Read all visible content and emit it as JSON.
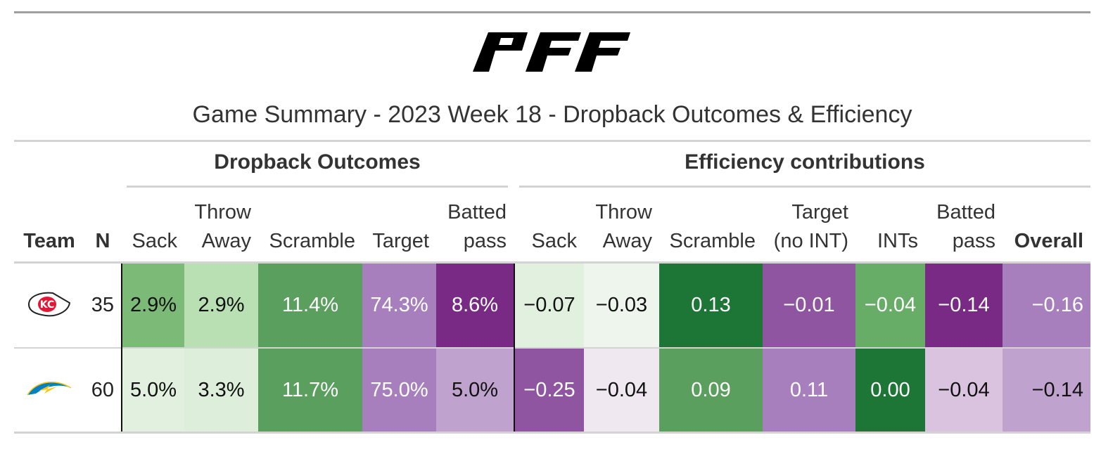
{
  "brand": "PFF",
  "title": "Game Summary - 2023 Week 18 - Dropback Outcomes & Efficiency",
  "spanners": {
    "outcomes": "Dropback Outcomes",
    "efficiency": "Efficiency contributions"
  },
  "columns": {
    "team": "Team",
    "n": "N",
    "o_sack": "Sack",
    "o_throwaway": "Throw\nAway",
    "o_scramble": "Scramble",
    "o_target": "Target",
    "o_batted": "Batted\npass",
    "e_sack": "Sack",
    "e_throwaway": "Throw\nAway",
    "e_scramble": "Scramble",
    "e_target": "Target\n(no INT)",
    "e_ints": "INTs",
    "e_batted": "Batted\npass",
    "e_overall": "Overall"
  },
  "rows": [
    {
      "team_icon": "chiefs-logo-icon",
      "n": "35",
      "cells": [
        "2.9%",
        "2.9%",
        "11.4%",
        "74.3%",
        "8.6%",
        "−0.07",
        "−0.03",
        "0.13",
        "−0.01",
        "−0.04",
        "−0.14",
        "−0.16"
      ],
      "colors": [
        "#7cbb77",
        "#b8e0b3",
        "#5a9f5d",
        "#a77fbd",
        "#782a85",
        "#e2f1df",
        "#eef5ec",
        "#1d7635",
        "#8f55a0",
        "#67ad67",
        "#782a85",
        "#a77fbd"
      ]
    },
    {
      "team_icon": "chargers-logo-icon",
      "n": "60",
      "cells": [
        "5.0%",
        "3.3%",
        "11.7%",
        "75.0%",
        "5.0%",
        "−0.25",
        "−0.04",
        "0.09",
        "0.11",
        "0.00",
        "−0.04",
        "−0.14"
      ],
      "colors": [
        "#e2f1df",
        "#ddefda",
        "#5a9f5d",
        "#a77fbd",
        "#c0a2cf",
        "#8f55a0",
        "#f0e8f1",
        "#5a9f5d",
        "#a77fbd",
        "#1d7635",
        "#d9c3df",
        "#c0a2cf"
      ]
    }
  ]
}
